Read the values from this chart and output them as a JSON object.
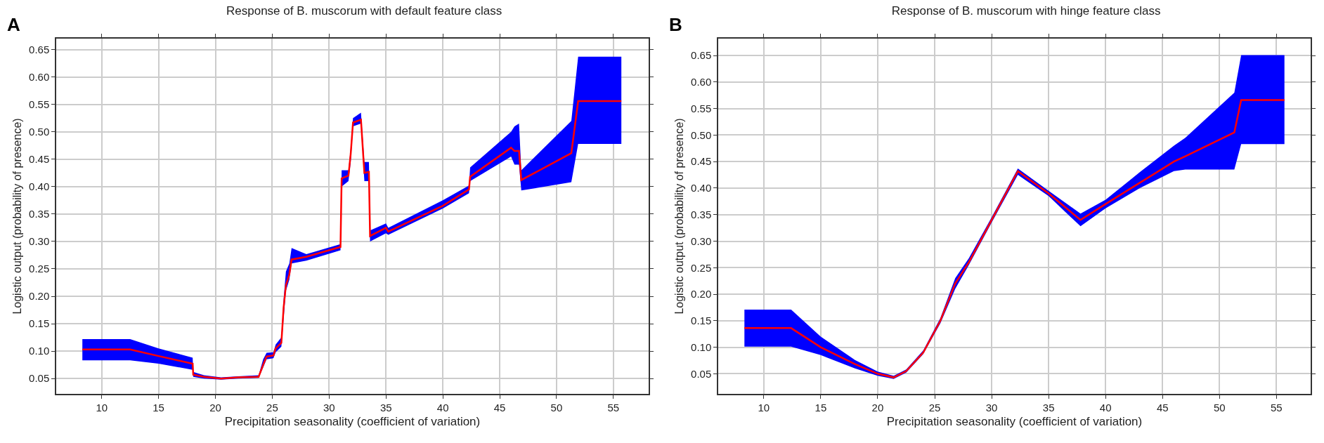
{
  "chart_data": [
    {
      "type": "line",
      "title": "Response of B. muscorum with default feature class",
      "xlabel": "Precipitation seasonality (coefficient of variation)",
      "ylabel": "Logistic output (probability of presence)",
      "annotations": [
        "A"
      ],
      "x": [
        8.3,
        12.5,
        15,
        18,
        18.05,
        19,
        20.5,
        22,
        23.8,
        24.2,
        24.5,
        25.1,
        25.3,
        25.8,
        26,
        26.2,
        26.5,
        26.7,
        28,
        31,
        31.1,
        31.7,
        31.9,
        32.1,
        32.8,
        33.1,
        33.5,
        33.6,
        35,
        35.2,
        40,
        42.3,
        42.4,
        46,
        46.3,
        46.7,
        46.9,
        51.3,
        51.9,
        55.7
      ],
      "series": [
        {
          "color": "#ff0000",
          "values": [
            0.103,
            0.103,
            0.091,
            0.077,
            0.057,
            0.053,
            0.05,
            0.052,
            0.053,
            0.075,
            0.09,
            0.092,
            0.105,
            0.115,
            0.18,
            0.22,
            0.24,
            0.267,
            0.272,
            0.29,
            0.415,
            0.42,
            0.46,
            0.517,
            0.522,
            0.425,
            0.427,
            0.31,
            0.325,
            0.318,
            0.365,
            0.395,
            0.418,
            0.471,
            0.465,
            0.465,
            0.412,
            0.461,
            0.556,
            0.556
          ],
          "lower": [
            0.083,
            0.083,
            0.077,
            0.066,
            0.053,
            0.05,
            0.048,
            0.05,
            0.051,
            0.07,
            0.085,
            0.087,
            0.098,
            0.108,
            0.16,
            0.21,
            0.23,
            0.26,
            0.265,
            0.284,
            0.4,
            0.41,
            0.445,
            0.51,
            0.515,
            0.41,
            0.41,
            0.3,
            0.315,
            0.312,
            0.36,
            0.388,
            0.41,
            0.455,
            0.44,
            0.44,
            0.393,
            0.408,
            0.478,
            0.478
          ],
          "upper": [
            0.122,
            0.122,
            0.105,
            0.088,
            0.062,
            0.056,
            0.052,
            0.054,
            0.056,
            0.085,
            0.097,
            0.098,
            0.112,
            0.125,
            0.195,
            0.245,
            0.26,
            0.288,
            0.277,
            0.295,
            0.43,
            0.43,
            0.47,
            0.525,
            0.535,
            0.445,
            0.445,
            0.32,
            0.333,
            0.325,
            0.375,
            0.402,
            0.435,
            0.5,
            0.51,
            0.515,
            0.43,
            0.52,
            0.637,
            0.637
          ]
        }
      ],
      "xlim": [
        6,
        58.1
      ],
      "ylim": [
        0.022,
        0.67
      ],
      "xticks": [
        10,
        15,
        20,
        25,
        30,
        35,
        40,
        45,
        50,
        55
      ],
      "yticks": [
        0.05,
        {
          "value": 0.1,
          "label": "0.10"
        },
        0.15,
        {
          "value": 0.2,
          "label": "0.20"
        },
        0.25,
        {
          "value": 0.3,
          "label": "0.30"
        },
        0.35,
        {
          "value": 0.4,
          "label": "0.40"
        },
        0.45,
        {
          "value": 0.5,
          "label": "0.50"
        },
        0.55,
        {
          "value": 0.6,
          "label": "0.60"
        },
        0.65
      ],
      "grid": true
    },
    {
      "type": "line",
      "title": "Response of B. muscorum with hinge feature class",
      "xlabel": "Precipitation seasonality (coefficient of variation)",
      "ylabel": "Logistic output (probability of presence)",
      "annotations": [
        "B"
      ],
      "x": [
        8.3,
        12.4,
        15,
        18,
        20,
        21.4,
        22.5,
        24,
        25.5,
        26.8,
        28,
        30,
        32.3,
        35,
        37.8,
        40,
        43,
        46,
        47,
        51.3,
        51.9,
        55.7
      ],
      "series": [
        {
          "color": "#ff0000",
          "values": [
            0.136,
            0.136,
            0.1,
            0.068,
            0.05,
            0.043,
            0.055,
            0.09,
            0.15,
            0.22,
            0.26,
            0.34,
            0.432,
            0.39,
            0.34,
            0.37,
            0.41,
            0.45,
            0.46,
            0.505,
            0.566,
            0.566
          ],
          "lower": [
            0.101,
            0.101,
            0.085,
            0.06,
            0.046,
            0.04,
            0.052,
            0.087,
            0.145,
            0.21,
            0.255,
            0.335,
            0.425,
            0.385,
            0.328,
            0.362,
            0.4,
            0.432,
            0.435,
            0.435,
            0.483,
            0.483
          ],
          "upper": [
            0.171,
            0.171,
            0.12,
            0.076,
            0.054,
            0.046,
            0.058,
            0.094,
            0.155,
            0.23,
            0.268,
            0.345,
            0.437,
            0.395,
            0.352,
            0.378,
            0.43,
            0.48,
            0.495,
            0.58,
            0.651,
            0.651
          ]
        }
      ],
      "xlim": [
        6,
        58
      ],
      "ylim": [
        0.012,
        0.682
      ],
      "xticks": [
        10,
        15,
        20,
        25,
        30,
        35,
        40,
        45,
        50,
        55
      ],
      "yticks": [
        0.05,
        {
          "value": 0.1,
          "label": "0.10"
        },
        0.15,
        {
          "value": 0.2,
          "label": "0.20"
        },
        0.25,
        {
          "value": 0.3,
          "label": "0.30"
        },
        0.35,
        {
          "value": 0.4,
          "label": "0.40"
        },
        0.45,
        {
          "value": 0.5,
          "label": "0.50"
        },
        0.55,
        {
          "value": 0.6,
          "label": "0.60"
        },
        0.65
      ],
      "grid": true
    }
  ]
}
